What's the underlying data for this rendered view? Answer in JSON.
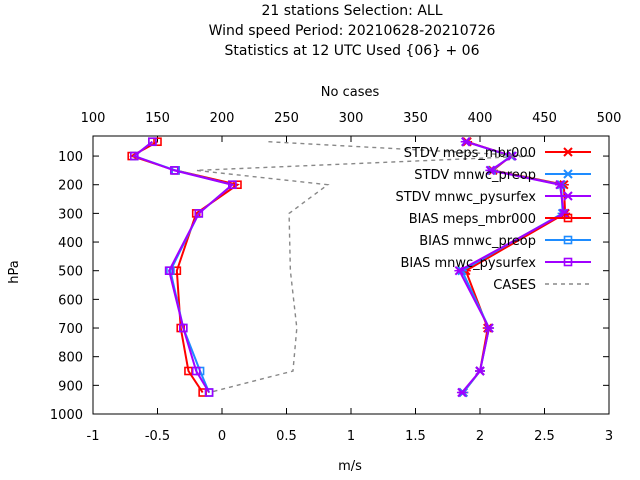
{
  "chart_data": {
    "type": "line",
    "title_lines": [
      "21 stations Selection: ALL",
      "Wind speed  Period: 20210628-20210726",
      "Statistics at 12 UTC  Used {06} + 06"
    ],
    "xlabel": "m/s",
    "ylabel": "hPa",
    "x2label": "No cases",
    "xlim": [
      -1,
      3
    ],
    "x2lim": [
      100,
      500
    ],
    "ylim": [
      1000,
      30
    ],
    "xticks": [
      -1,
      -0.5,
      0,
      0.5,
      1,
      1.5,
      2,
      2.5,
      3
    ],
    "xtick_labels": [
      "-1",
      "-0.5",
      "0",
      "0.5",
      "1",
      "1.5",
      "2",
      "2.5",
      "3"
    ],
    "x2ticks": [
      100,
      150,
      200,
      250,
      300,
      350,
      400,
      450,
      500
    ],
    "x2tick_labels": [
      "100",
      "150",
      "200",
      "250",
      "300",
      "350",
      "400",
      "450",
      "500"
    ],
    "yticks": [
      100,
      200,
      300,
      400,
      500,
      600,
      700,
      800,
      900,
      1000
    ],
    "ytick_labels": [
      "100",
      "200",
      "300",
      "400",
      "500",
      "600",
      "700",
      "800",
      "900",
      "1000"
    ],
    "legend_position": "top-right",
    "series": [
      {
        "name": "STDV meps_mbr000",
        "color": "#ff0000",
        "marker": "x",
        "dash": "solid",
        "axis": "x1",
        "y": [
          50,
          100,
          150,
          200,
          300,
          500,
          700,
          850,
          925
        ],
        "x": [
          1.9,
          2.24,
          2.1,
          2.65,
          2.66,
          1.89,
          2.06,
          2.0,
          1.87
        ]
      },
      {
        "name": "STDV mnwc_preop",
        "color": "#1e8cff",
        "marker": "x",
        "dash": "solid",
        "axis": "x1",
        "y": [
          50,
          100,
          150,
          200,
          300,
          500,
          700,
          850,
          925
        ],
        "x": [
          1.89,
          2.24,
          2.09,
          2.63,
          2.64,
          1.86,
          2.07,
          2.0,
          1.87
        ]
      },
      {
        "name": "STDV mnwc_pysurfex",
        "color": "#a000ff",
        "marker": "x",
        "dash": "solid",
        "axis": "x1",
        "y": [
          50,
          100,
          150,
          200,
          300,
          500,
          700,
          850,
          925
        ],
        "x": [
          1.89,
          2.25,
          2.08,
          2.62,
          2.65,
          1.84,
          2.07,
          2.0,
          1.86
        ]
      },
      {
        "name": "BIAS meps_mbr000",
        "color": "#ff0000",
        "marker": "square",
        "dash": "solid",
        "axis": "x1",
        "y": [
          50,
          100,
          150,
          200,
          300,
          500,
          700,
          850,
          925
        ],
        "x": [
          -0.5,
          -0.7,
          -0.36,
          0.12,
          -0.2,
          -0.35,
          -0.32,
          -0.26,
          -0.15
        ]
      },
      {
        "name": "BIAS mnwc_preop",
        "color": "#1e8cff",
        "marker": "square",
        "dash": "solid",
        "axis": "x1",
        "y": [
          50,
          100,
          150,
          200,
          300,
          500,
          700,
          850,
          925
        ],
        "x": [
          -0.54,
          -0.68,
          -0.36,
          0.08,
          -0.18,
          -0.4,
          -0.3,
          -0.17,
          -0.1
        ]
      },
      {
        "name": "BIAS mnwc_pysurfex",
        "color": "#a000ff",
        "marker": "square",
        "dash": "solid",
        "axis": "x1",
        "y": [
          50,
          100,
          150,
          200,
          300,
          500,
          700,
          850,
          925
        ],
        "x": [
          -0.54,
          -0.68,
          -0.37,
          0.08,
          -0.18,
          -0.41,
          -0.3,
          -0.2,
          -0.1
        ]
      },
      {
        "name": "CASES",
        "color": "#888888",
        "marker": "none",
        "dash": "dashed",
        "axis": "x2",
        "y": [
          50,
          100,
          150,
          200,
          300,
          500,
          700,
          850,
          925
        ],
        "x": [
          236,
          440,
          180,
          282,
          252,
          253,
          258,
          255,
          190
        ]
      }
    ]
  }
}
